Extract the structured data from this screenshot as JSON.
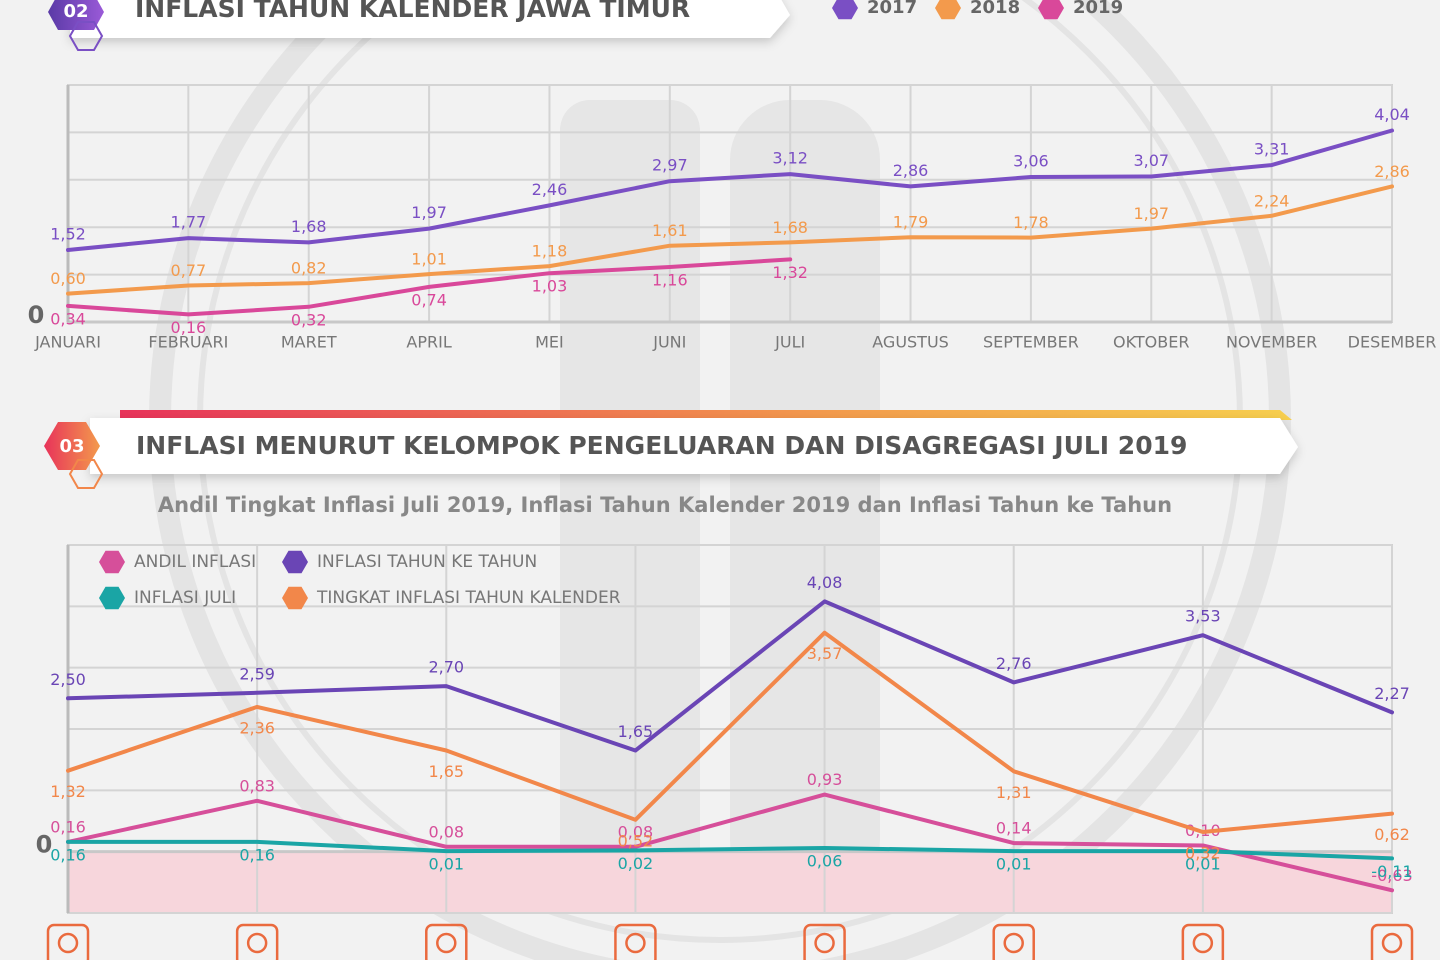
{
  "chart_data": [
    {
      "type": "line",
      "section_number": "02",
      "title": "INFLASI TAHUN KALENDER JAWA TIMUR",
      "categories": [
        "JANUARI",
        "FEBRUARI",
        "MARET",
        "APRIL",
        "MEI",
        "JUNI",
        "JULI",
        "AGUSTUS",
        "SEPTEMBER",
        "OKTOBER",
        "NOVEMBER",
        "DESEMBER"
      ],
      "series": [
        {
          "name": "2017",
          "color": "#7a4fc4",
          "values": [
            1.52,
            1.77,
            1.68,
            1.97,
            2.46,
            2.97,
            3.12,
            2.86,
            3.06,
            3.07,
            3.31,
            4.04
          ],
          "value_labels": [
            "1,52",
            "1,77",
            "1,68",
            "1,97",
            "2,46",
            "2,97",
            "3,12",
            "2,86",
            "3,06",
            "3,07",
            "3,31",
            "4,04"
          ]
        },
        {
          "name": "2018",
          "color": "#f39a4c",
          "values": [
            0.6,
            0.77,
            0.82,
            1.01,
            1.18,
            1.61,
            1.68,
            1.79,
            1.78,
            1.97,
            2.24,
            2.86
          ],
          "value_labels": [
            "0,60",
            "0,77",
            "0,82",
            "1,01",
            "1,18",
            "1,61",
            "1,68",
            "1,79",
            "1,78",
            "1,97",
            "2,24",
            "2,86"
          ]
        },
        {
          "name": "2019",
          "color": "#d9489a",
          "values": [
            0.34,
            0.16,
            0.32,
            0.74,
            1.03,
            1.16,
            1.32,
            null,
            null,
            null,
            null,
            null
          ],
          "value_labels": [
            "0,34",
            "0,16",
            "0,32",
            "0,74",
            "1,03",
            "1,16",
            "1,32",
            null,
            null,
            null,
            null,
            null
          ]
        }
      ],
      "ylim": [
        0,
        5
      ],
      "yticks": [
        0
      ],
      "grid": true,
      "grid_values": [
        1,
        2,
        3,
        4,
        5
      ],
      "legend": "top-right"
    },
    {
      "type": "line",
      "section_number": "03",
      "title": "INFLASI MENURUT KELOMPOK PENGELUARAN DAN DISAGREGASI JULI 2019",
      "subtitle": "Andil Tingkat Inflasi Juli 2019, Inflasi Tahun Kalender 2019 dan Inflasi Tahun ke Tahun",
      "categories": [
        null,
        null,
        null,
        null,
        null,
        null,
        null,
        null
      ],
      "series": [
        {
          "name": "ANDIL INFLASI",
          "color": "#d64f9a",
          "values": [
            0.16,
            0.83,
            0.08,
            0.08,
            0.93,
            0.14,
            0.1,
            -0.63
          ],
          "value_labels": [
            "0,16",
            "0,83",
            "0,08",
            "0,08",
            "0,93",
            "0,14",
            "0,10",
            "-0,63"
          ]
        },
        {
          "name": "INFLASI TAHUN KE TAHUN",
          "color": "#6a45b5",
          "values": [
            2.5,
            2.59,
            2.7,
            1.65,
            4.08,
            2.76,
            3.53,
            2.27
          ],
          "value_labels": [
            "2,50",
            "2,59",
            "2,70",
            "1,65",
            "4,08",
            "2,76",
            "3,53",
            "2,27"
          ]
        },
        {
          "name": "INFLASI JULI",
          "color": "#1aa5a5",
          "values": [
            0.16,
            0.16,
            0.01,
            0.02,
            0.06,
            0.01,
            0.01,
            -0.11
          ],
          "value_labels": [
            "0,16",
            "0,16",
            "0,01",
            "0,02",
            "0,06",
            "0,01",
            "0,01",
            "-0,11"
          ]
        },
        {
          "name": "TINGKAT INFLASI TAHUN KALENDER",
          "color": "#f2874a",
          "values": [
            1.32,
            2.36,
            1.65,
            0.52,
            3.57,
            1.31,
            0.32,
            0.62
          ],
          "value_labels": [
            "1,32",
            "2,36",
            "1,65",
            "0,52",
            "3,57",
            "1,31",
            "0,32",
            "0,62"
          ]
        }
      ],
      "ylim": [
        -1,
        5
      ],
      "yticks": [
        0
      ],
      "grid": true,
      "grid_values": [
        -1,
        1,
        2,
        3,
        4,
        5
      ],
      "legend": "top-left"
    }
  ]
}
